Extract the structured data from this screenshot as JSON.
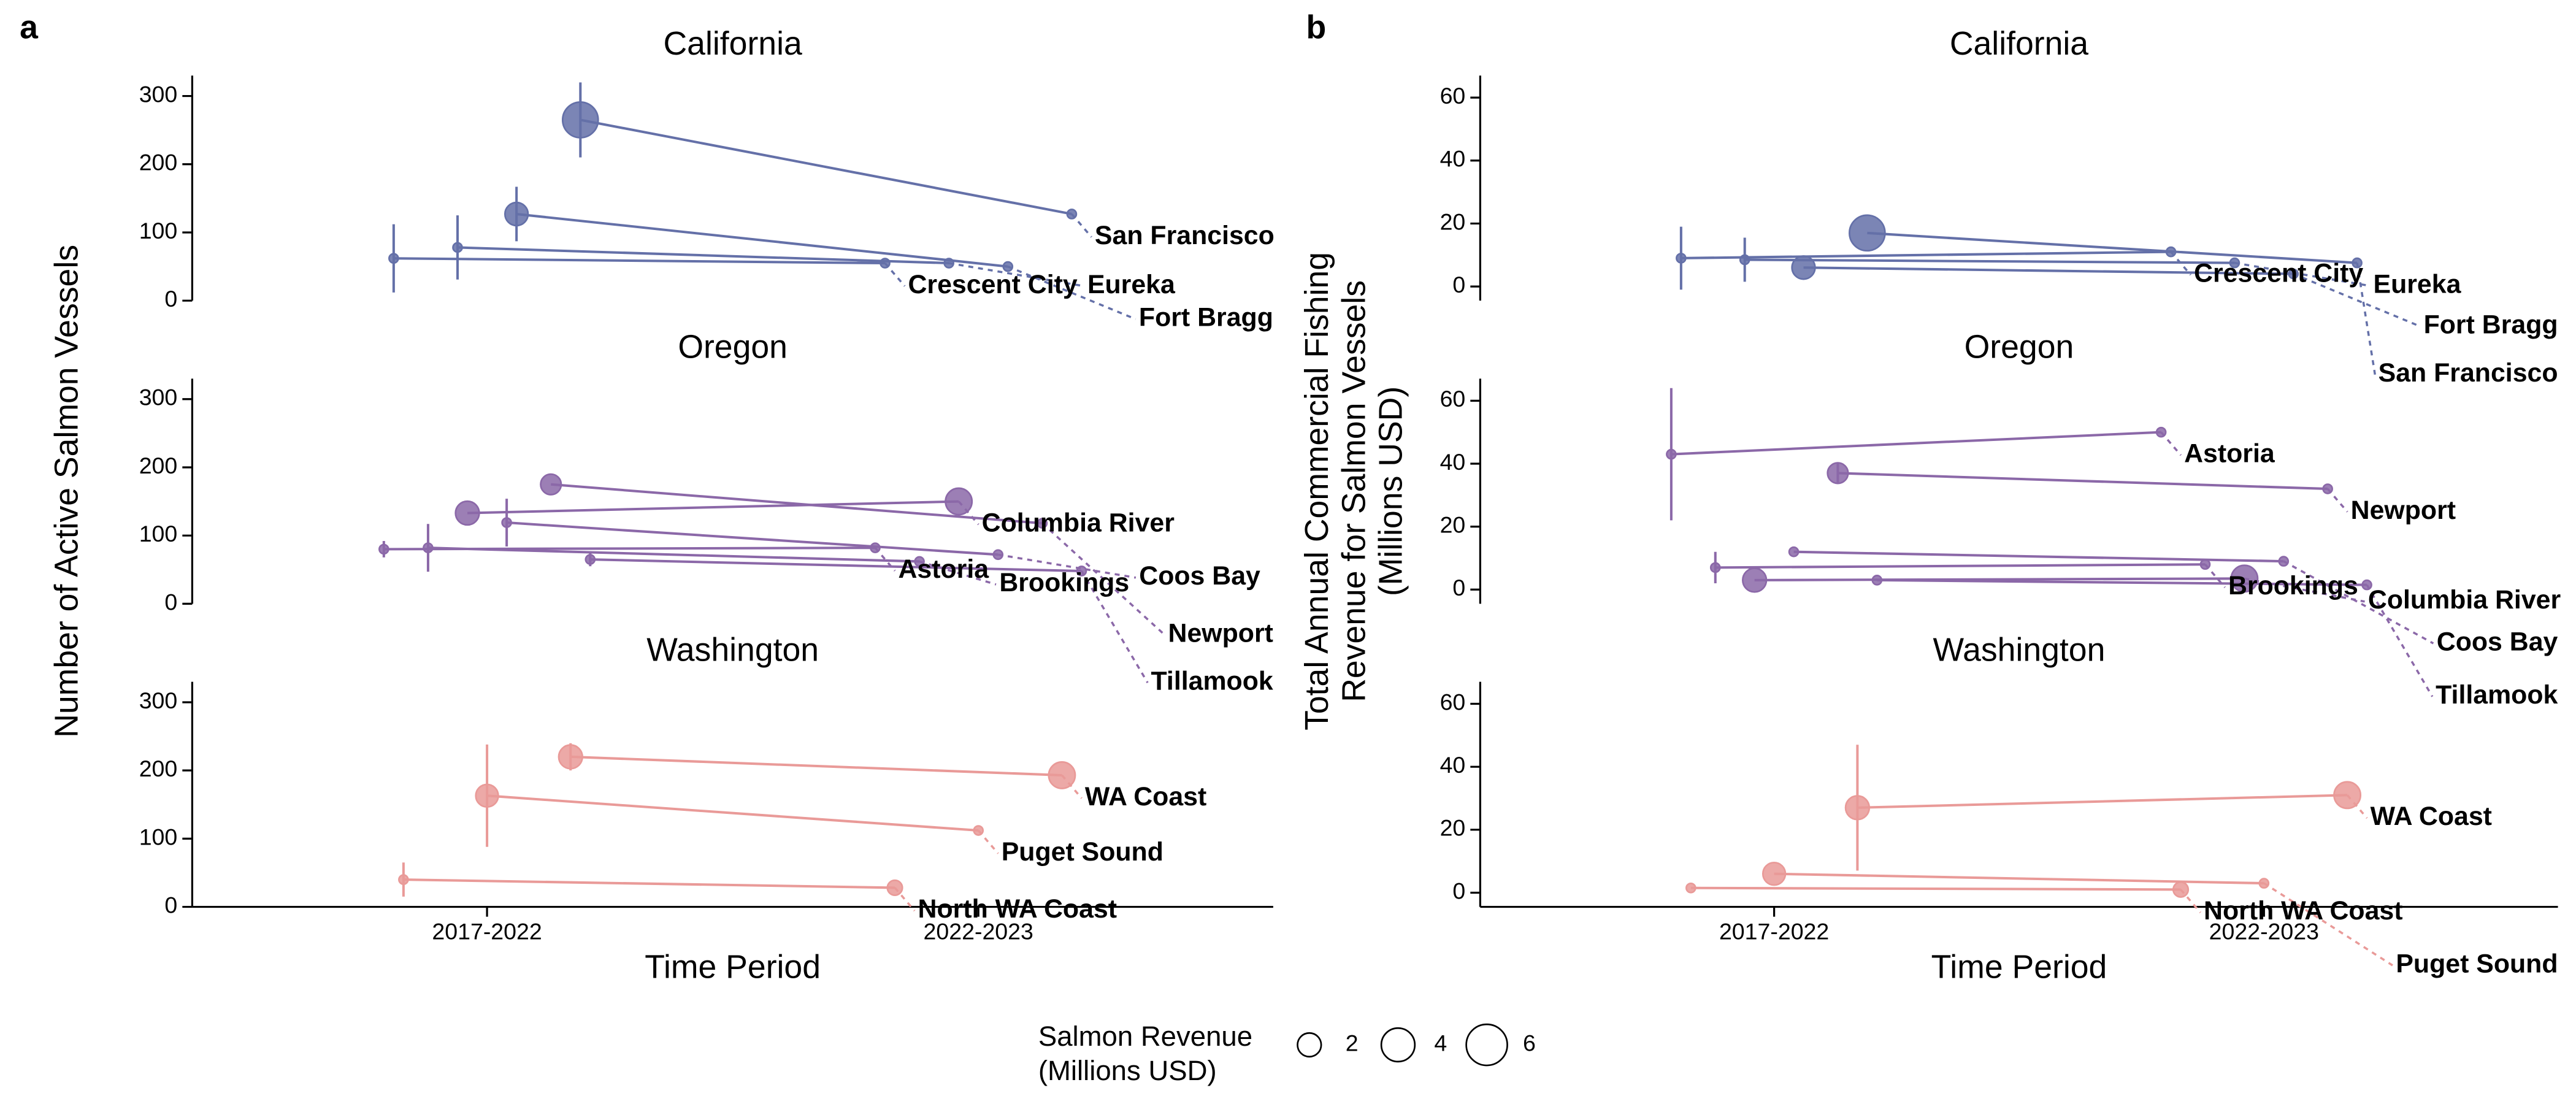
{
  "chart_data": [
    {
      "type": "slope",
      "panel_label": "a",
      "title": "California",
      "xlim": [
        0.4,
        2.6
      ],
      "ylim": [
        0,
        330
      ],
      "yticks": [
        0,
        100,
        200,
        300
      ],
      "series": [
        {
          "name": "Crescent City",
          "color": "#6470a8",
          "x": [
            0.81,
            1.81
          ],
          "values": [
            62,
            55
          ],
          "errors": [
            50,
            null
          ],
          "sizes": [
            0.3,
            0.3
          ]
        },
        {
          "name": "Eureka",
          "color": "#6470a8",
          "x": [
            0.94,
            1.94
          ],
          "values": [
            78,
            55
          ],
          "errors": [
            47,
            null
          ],
          "sizes": [
            0.3,
            0.3
          ]
        },
        {
          "name": "Fort Bragg",
          "color": "#6470a8",
          "x": [
            1.06,
            2.06
          ],
          "values": [
            127,
            50
          ],
          "errors": [
            40,
            null
          ],
          "sizes": [
            1.9,
            0.3
          ]
        },
        {
          "name": "San Francisco",
          "color": "#6470a8",
          "x": [
            1.19,
            2.19
          ],
          "values": [
            265,
            127
          ],
          "errors": [
            55,
            null
          ],
          "sizes": [
            4.5,
            0.3
          ]
        }
      ]
    },
    {
      "type": "slope",
      "title": "Oregon",
      "ylabel": [
        "Number of Active Salmon Vessels"
      ],
      "xlim": [
        0.4,
        2.6
      ],
      "ylim": [
        0,
        330
      ],
      "yticks": [
        0,
        100,
        200,
        300
      ],
      "series": [
        {
          "name": "Astoria",
          "color": "#8b68a8",
          "x": [
            0.79,
            1.79
          ],
          "values": [
            80,
            82
          ],
          "errors": [
            12,
            null
          ],
          "sizes": [
            0.3,
            0.3
          ]
        },
        {
          "name": "Brookings",
          "color": "#8b68a8",
          "x": [
            0.88,
            1.88
          ],
          "values": [
            82,
            62
          ],
          "errors": [
            35,
            null
          ],
          "sizes": [
            0.3,
            0.3
          ]
        },
        {
          "name": "Columbia River",
          "color": "#8b68a8",
          "x": [
            0.96,
            1.96
          ],
          "values": [
            133,
            150
          ],
          "errors": [
            null,
            null
          ],
          "sizes": [
            2,
            2.5
          ]
        },
        {
          "name": "Coos Bay",
          "color": "#8b68a8",
          "x": [
            1.04,
            2.04
          ],
          "values": [
            119,
            72
          ],
          "errors": [
            35,
            null
          ],
          "sizes": [
            0.3,
            0.3
          ]
        },
        {
          "name": "Newport",
          "color": "#8b68a8",
          "x": [
            1.13,
            2.13
          ],
          "values": [
            175,
            118
          ],
          "errors": [
            null,
            null
          ],
          "sizes": [
            1.5,
            0.3
          ]
        },
        {
          "name": "Tillamook",
          "color": "#8b68a8",
          "x": [
            1.21,
            2.21
          ],
          "values": [
            65,
            48
          ],
          "errors": [
            10,
            null
          ],
          "sizes": [
            0.3,
            0.3
          ]
        }
      ]
    },
    {
      "type": "slope",
      "title": "Washington",
      "xlabel": "Time Period",
      "xlim": [
        0.4,
        2.6
      ],
      "ylim": [
        0,
        330
      ],
      "yticks": [
        0,
        100,
        200,
        300
      ],
      "xticks": [
        {
          "value": 1,
          "label": "2017-2022"
        },
        {
          "value": 2,
          "label": "2022-2023"
        }
      ],
      "series": [
        {
          "name": "North WA Coast",
          "color": "#e99a98",
          "x": [
            0.83,
            1.83
          ],
          "values": [
            40,
            28
          ],
          "errors": [
            25,
            null
          ],
          "sizes": [
            0.3,
            0.8
          ]
        },
        {
          "name": "Puget Sound",
          "color": "#e99a98",
          "x": [
            1.0,
            2.0
          ],
          "values": [
            163,
            112
          ],
          "errors": [
            75,
            null
          ],
          "sizes": [
            1.8,
            0.3
          ]
        },
        {
          "name": "WA Coast",
          "color": "#e99a98",
          "x": [
            1.17,
            2.17
          ],
          "values": [
            220,
            193
          ],
          "errors": [
            20,
            null
          ],
          "sizes": [
            2.0,
            2.5
          ]
        }
      ]
    },
    {
      "type": "slope",
      "panel_label": "b",
      "title": "California",
      "xlim": [
        0.4,
        2.6
      ],
      "ylim": [
        -4.5,
        67
      ],
      "yticks": [
        0,
        20,
        40,
        60
      ],
      "series": [
        {
          "name": "Crescent City",
          "color": "#6470a8",
          "x": [
            0.81,
            1.81
          ],
          "values": [
            9,
            11
          ],
          "errors": [
            10,
            null
          ],
          "sizes": [
            0.3,
            0.3
          ]
        },
        {
          "name": "Eureka",
          "color": "#6470a8",
          "x": [
            0.94,
            1.94
          ],
          "values": [
            8.5,
            7.5
          ],
          "errors": [
            7,
            null
          ],
          "sizes": [
            0.3,
            0.3
          ]
        },
        {
          "name": "Fort Bragg",
          "color": "#6470a8",
          "x": [
            1.06,
            2.06
          ],
          "values": [
            6,
            4
          ],
          "errors": [
            null,
            null
          ],
          "sizes": [
            1.9,
            0.3
          ]
        },
        {
          "name": "San Francisco",
          "color": "#6470a8",
          "x": [
            1.19,
            2.19
          ],
          "values": [
            17,
            7.5
          ],
          "errors": [
            null,
            null
          ],
          "sizes": [
            4.5,
            0.3
          ]
        }
      ]
    },
    {
      "type": "slope",
      "title": "Oregon",
      "ylabel": [
        "Total Annual Commercial Fishing",
        "Revenue for Salmon Vessels",
        "(Millions USD)"
      ],
      "xlim": [
        0.4,
        2.6
      ],
      "ylim": [
        -4.5,
        67
      ],
      "yticks": [
        0,
        20,
        40,
        60
      ],
      "series": [
        {
          "name": "Astoria",
          "color": "#8b68a8",
          "x": [
            0.79,
            1.79
          ],
          "values": [
            43,
            50
          ],
          "errors": [
            21,
            null
          ],
          "sizes": [
            0.3,
            0.3
          ]
        },
        {
          "name": "Brookings",
          "color": "#8b68a8",
          "x": [
            0.88,
            1.88
          ],
          "values": [
            7,
            8
          ],
          "errors": [
            5,
            null
          ],
          "sizes": [
            0.3,
            0.3
          ]
        },
        {
          "name": "Columbia River",
          "color": "#8b68a8",
          "x": [
            0.96,
            1.96
          ],
          "values": [
            3,
            3.5
          ],
          "errors": [
            null,
            null
          ],
          "sizes": [
            2,
            2.5
          ]
        },
        {
          "name": "Coos Bay",
          "color": "#8b68a8",
          "x": [
            1.04,
            2.04
          ],
          "values": [
            12,
            9
          ],
          "errors": [
            null,
            null
          ],
          "sizes": [
            0.3,
            0.3
          ]
        },
        {
          "name": "Newport",
          "color": "#8b68a8",
          "x": [
            1.13,
            2.13
          ],
          "values": [
            37,
            32
          ],
          "errors": [
            3,
            null
          ],
          "sizes": [
            1.5,
            0.3
          ]
        },
        {
          "name": "Tillamook",
          "color": "#8b68a8",
          "x": [
            1.21,
            2.21
          ],
          "values": [
            3,
            1.5
          ],
          "errors": [
            null,
            null
          ],
          "sizes": [
            0.3,
            0.3
          ]
        }
      ]
    },
    {
      "type": "slope",
      "title": "Washington",
      "xlabel": "Time Period",
      "xlim": [
        0.4,
        2.6
      ],
      "ylim": [
        -4.5,
        67
      ],
      "yticks": [
        0,
        20,
        40,
        60
      ],
      "xticks": [
        {
          "value": 1,
          "label": "2017-2022"
        },
        {
          "value": 2,
          "label": "2022-2023"
        }
      ],
      "series": [
        {
          "name": "North WA Coast",
          "color": "#e99a98",
          "x": [
            0.83,
            1.83
          ],
          "values": [
            1.5,
            1
          ],
          "errors": [
            null,
            null
          ],
          "sizes": [
            0.3,
            0.8
          ]
        },
        {
          "name": "Puget Sound",
          "color": "#e99a98",
          "x": [
            1.0,
            2.0
          ],
          "values": [
            6,
            3
          ],
          "errors": [
            null,
            null
          ],
          "sizes": [
            1.8,
            0.3
          ]
        },
        {
          "name": "WA Coast",
          "color": "#e99a98",
          "x": [
            1.17,
            2.17
          ],
          "values": [
            27,
            31
          ],
          "errors": [
            20,
            null
          ],
          "sizes": [
            2.0,
            2.5
          ]
        }
      ]
    }
  ],
  "size_legend": {
    "title": [
      "Salmon Revenue",
      "(Millions USD)"
    ],
    "values": [
      2,
      4,
      6
    ]
  }
}
